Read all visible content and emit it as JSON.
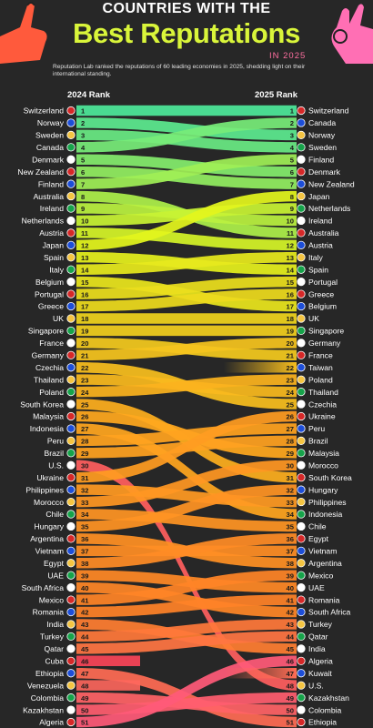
{
  "header": {
    "title_top": "COUNTRIES WITH THE",
    "title_main": "Best Reputations",
    "title_year": "IN 2025",
    "subtitle": "Reputation Lab ranked the reputations of 60 leading economies in 2025, shedding light on their international standing.",
    "col_left": "2024 Rank",
    "col_right": "2025 Rank"
  },
  "colors": {
    "background": "#272727",
    "accent_green": "#4ee89a",
    "accent_yellow": "#e3f51d",
    "accent_orange": "#ff9a1c",
    "accent_pink": "#ff5a7a",
    "title_green": "#d9f53a"
  },
  "icons": [
    "pointing-hand-left-icon",
    "ok-hand-right-icon",
    "flag-icon"
  ],
  "chart_data": {
    "type": "bump",
    "title": "Countries with the Best Reputations in 2025",
    "xlabel_left": "2024 Rank",
    "xlabel_right": "2025 Rank",
    "rank_range": [
      1,
      51
    ],
    "rankings_2024": [
      "Switzerland",
      "Norway",
      "Sweden",
      "Canada",
      "Denmark",
      "New Zealand",
      "Finland",
      "Australia",
      "Ireland",
      "Netherlands",
      "Austria",
      "Japan",
      "Spain",
      "Italy",
      "Belgium",
      "Portugal",
      "Greece",
      "UK",
      "Singapore",
      "France",
      "Germany",
      "Czechia",
      "Thailand",
      "Poland",
      "South Korea",
      "Malaysia",
      "Indonesia",
      "Peru",
      "Brazil",
      "U.S.",
      "Ukraine",
      "Philippines",
      "Morocco",
      "Chile",
      "Hungary",
      "Argentina",
      "Vietnam",
      "Egypt",
      "UAE",
      "South Africa",
      "Mexico",
      "Romania",
      "India",
      "Turkey",
      "Qatar",
      "Cuba",
      "Ethiopia",
      "Venezuela",
      "Colombia",
      "Kazakhstan",
      "Algeria"
    ],
    "rankings_2025": [
      "Switzerland",
      "Canada",
      "Norway",
      "Sweden",
      "Finland",
      "Denmark",
      "New Zealand",
      "Japan",
      "Netherlands",
      "Ireland",
      "Australia",
      "Austria",
      "Italy",
      "Spain",
      "Portugal",
      "Greece",
      "Belgium",
      "UK",
      "Singapore",
      "Germany",
      "France",
      "Taiwan",
      "Poland",
      "Thailand",
      "Czechia",
      "Ukraine",
      "Peru",
      "Brazil",
      "Malaysia",
      "Morocco",
      "South Korea",
      "Hungary",
      "Philippines",
      "Indonesia",
      "Chile",
      "Egypt",
      "Vietnam",
      "Argentina",
      "Mexico",
      "UAE",
      "Romania",
      "South Africa",
      "Turkey",
      "Qatar",
      "India",
      "Algeria",
      "Kuwait",
      "U.S.",
      "Kazakhstan",
      "Colombia",
      "Ethiopia"
    ]
  }
}
